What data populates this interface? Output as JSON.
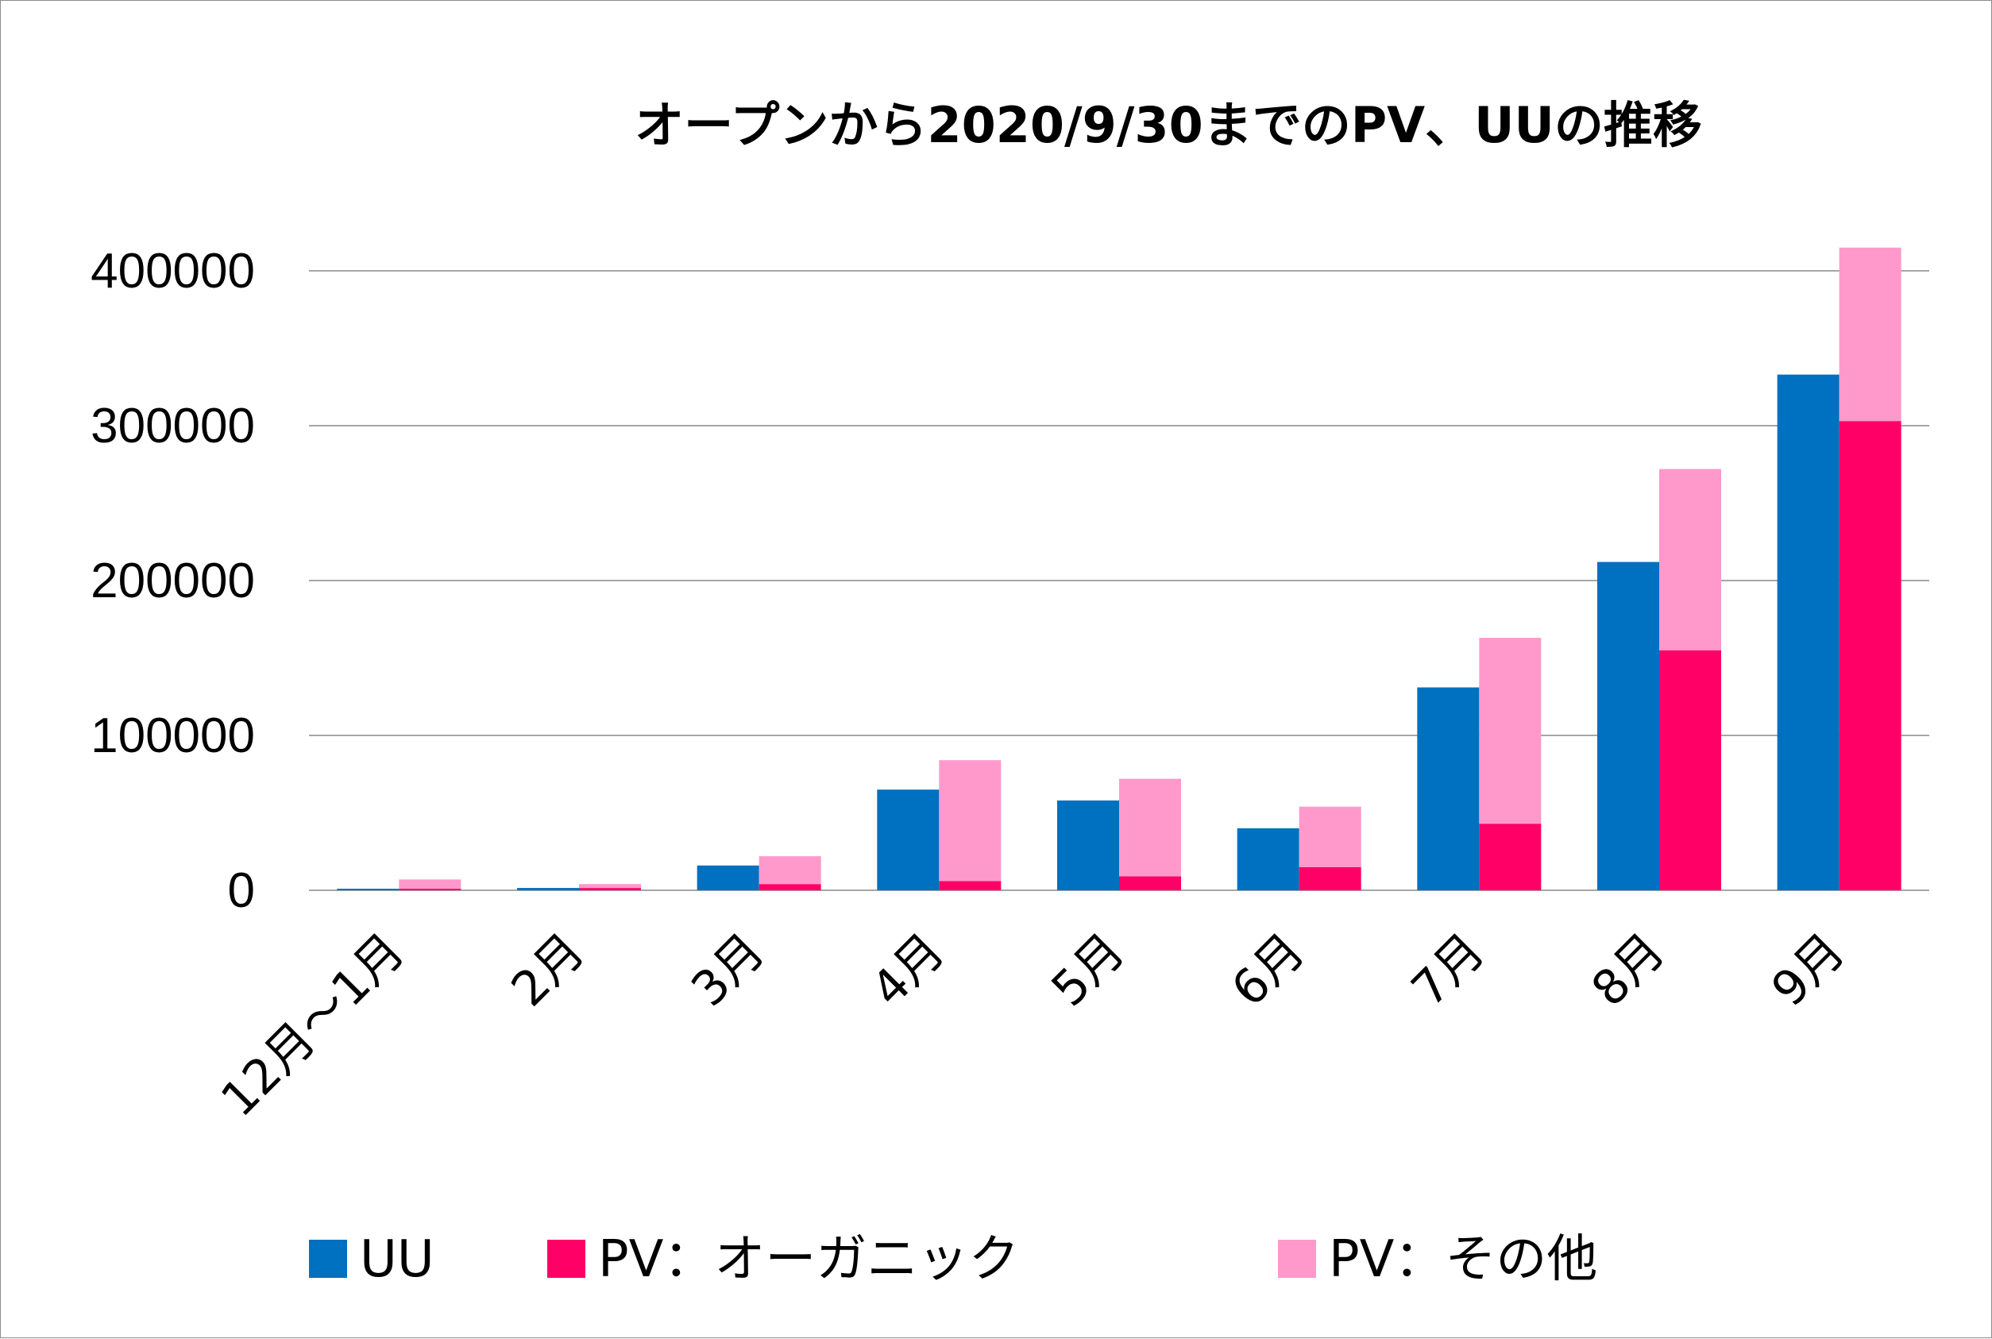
{
  "chart_data": {
    "type": "bar",
    "title": "オープンから2020/9/30までのPV、UUの推移",
    "categories": [
      "12月〜1月",
      "2月",
      "3月",
      "4月",
      "5月",
      "6月",
      "7月",
      "8月",
      "9月"
    ],
    "ylim": [
      0,
      400000
    ],
    "yticks": [
      0,
      100000,
      200000,
      300000,
      400000
    ],
    "grid": true,
    "legend_position": "bottom",
    "series": [
      {
        "name": "UU",
        "stack": "uu",
        "color": "#0070C0",
        "values": [
          1000,
          1500,
          16000,
          65000,
          58000,
          40000,
          131000,
          212000,
          333000
        ]
      },
      {
        "name": "PV：オーガニック",
        "stack": "pv",
        "color": "#FF0066",
        "values": [
          1000,
          1500,
          4000,
          6000,
          9000,
          15000,
          43000,
          155000,
          303000
        ]
      },
      {
        "name": "PV：その他",
        "stack": "pv",
        "color": "#FF99CC",
        "values": [
          6000,
          2500,
          18000,
          78000,
          63000,
          39000,
          120000,
          117000,
          112000
        ]
      }
    ]
  }
}
